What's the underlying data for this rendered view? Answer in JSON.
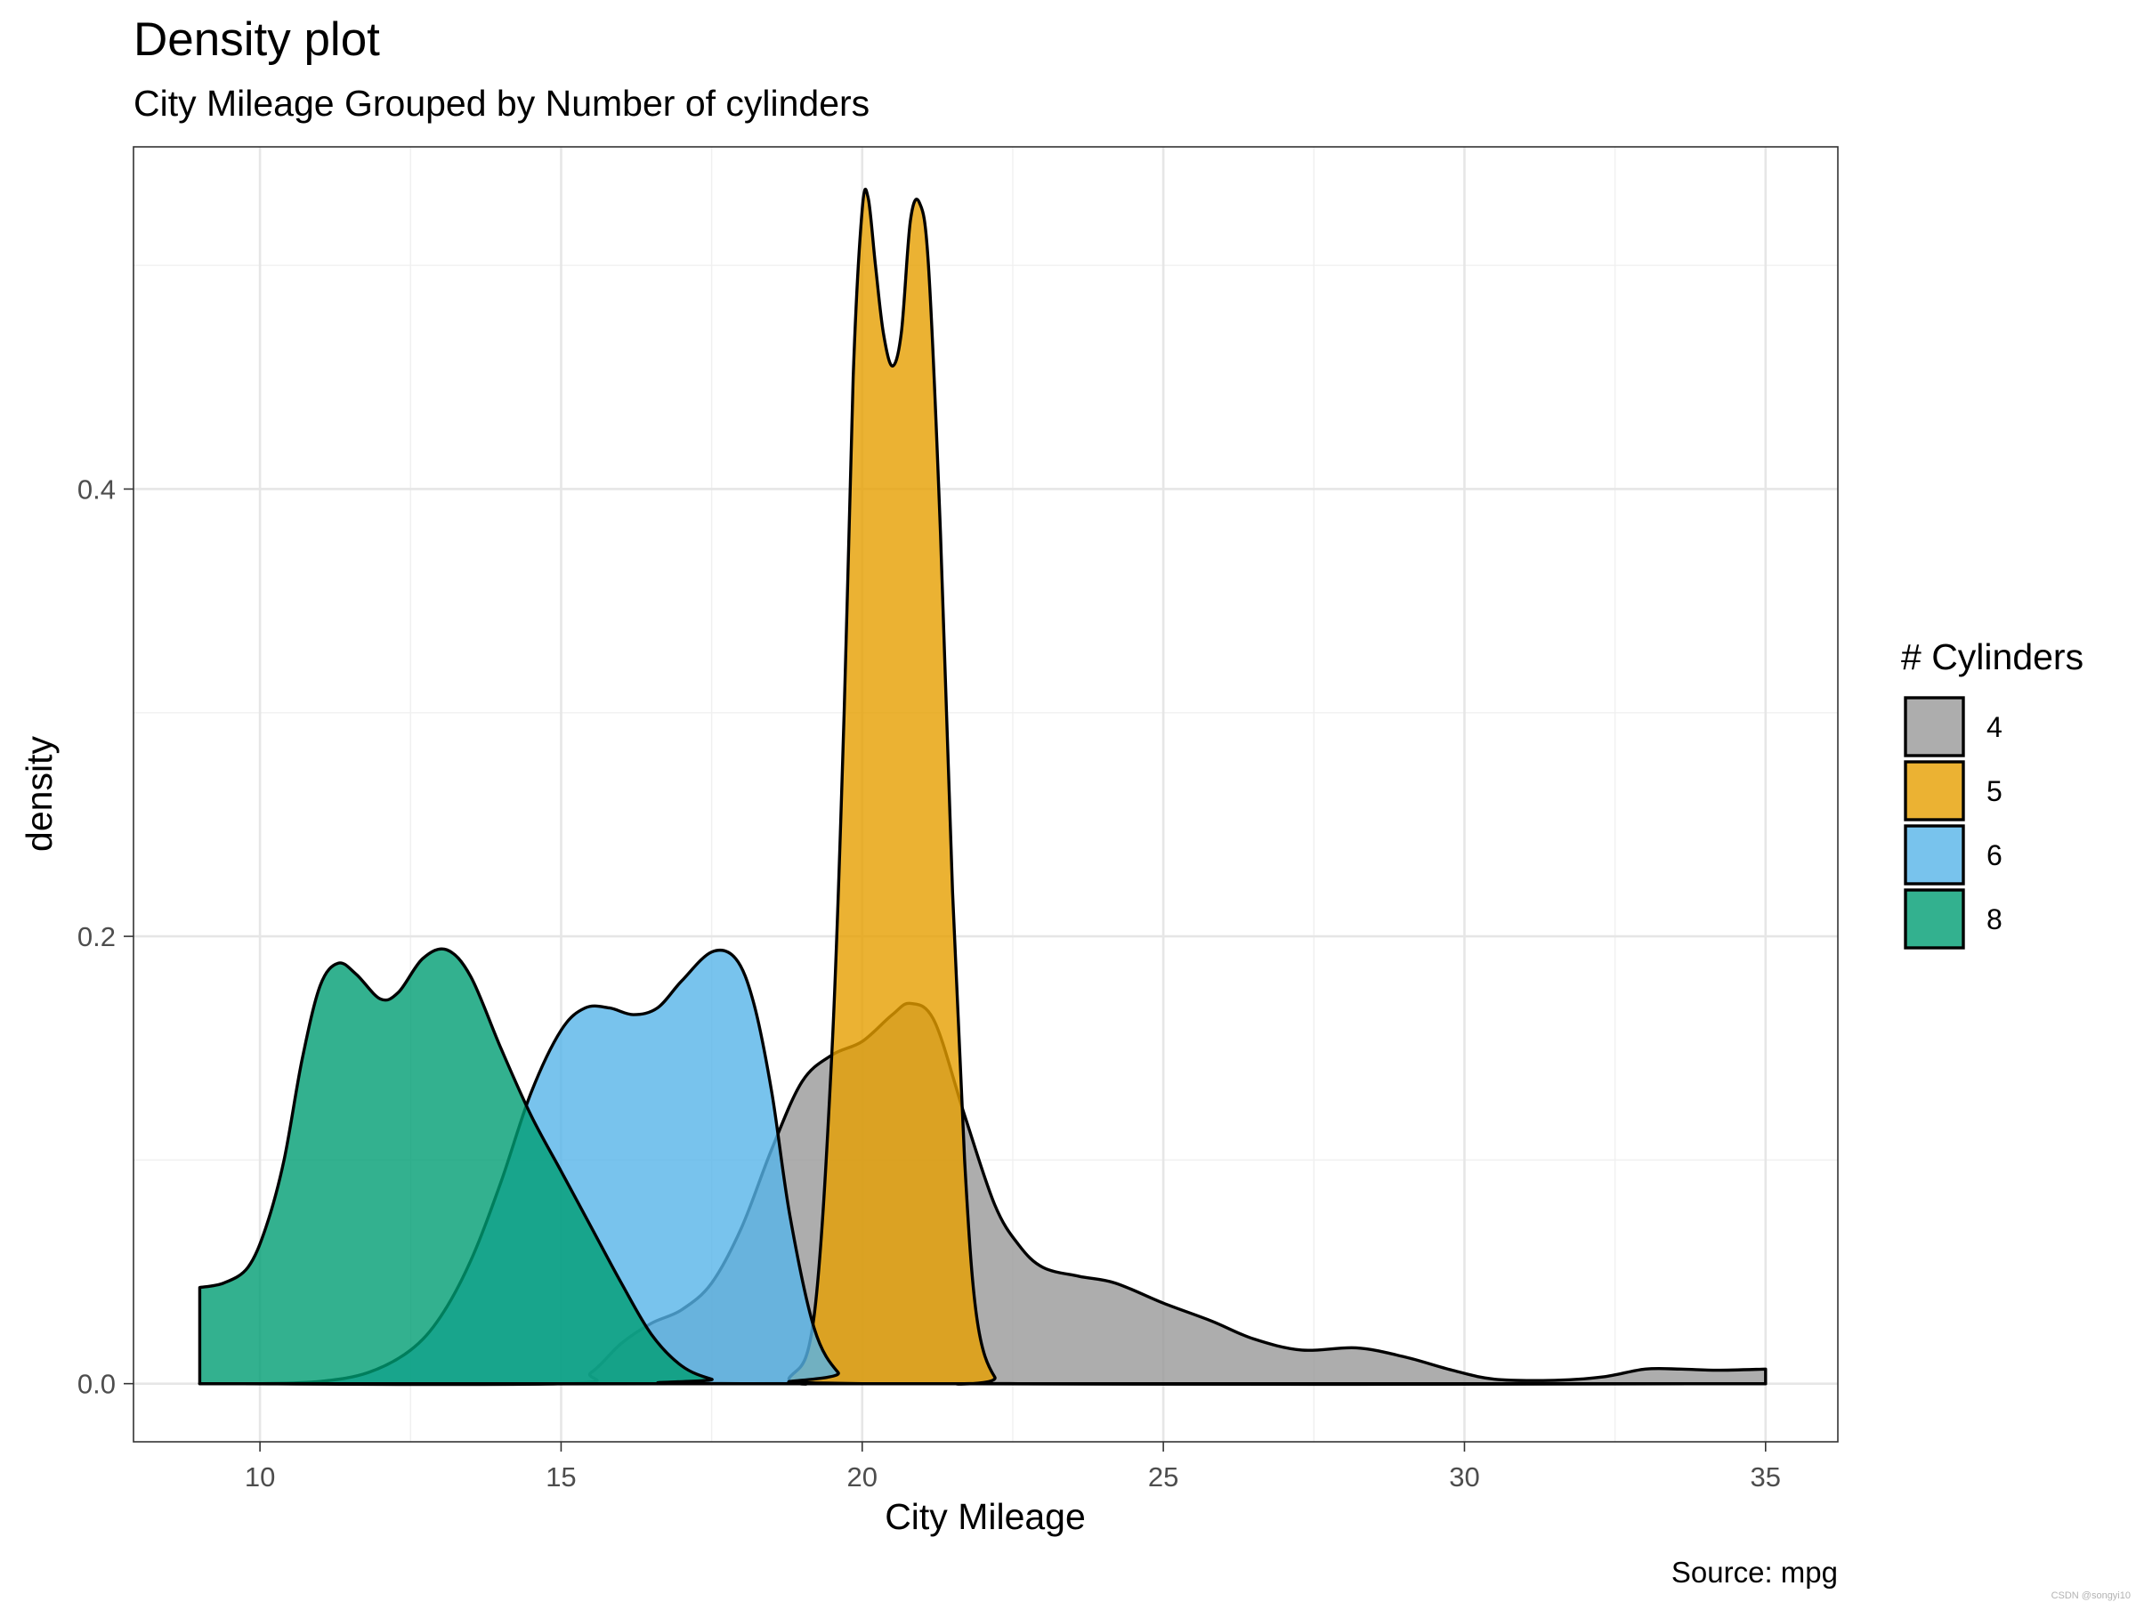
{
  "chart_data": {
    "type": "area",
    "subtype": "density",
    "title": "Density plot",
    "subtitle": "City Mileage Grouped by Number of cylinders",
    "xlabel": "City Mileage",
    "ylabel": "density",
    "caption": "Source: mpg",
    "xlim": [
      7.9,
      36.2
    ],
    "ylim": [
      -0.026,
      0.553
    ],
    "x_ticks": [
      10,
      15,
      20,
      25,
      30,
      35
    ],
    "x_tick_labels": [
      "10",
      "15",
      "20",
      "25",
      "30",
      "35"
    ],
    "y_ticks": [
      0.0,
      0.2,
      0.4
    ],
    "y_tick_labels": [
      "0.0",
      "0.2",
      "0.4"
    ],
    "grid": true,
    "legend": {
      "title": "# Cylinders",
      "position": "right"
    },
    "series": [
      {
        "name": "4",
        "color": "#999999",
        "alpha": 0.8,
        "points": [
          [
            9,
            0
          ],
          [
            15,
            0
          ],
          [
            15.5,
            0.005
          ],
          [
            16,
            0.018
          ],
          [
            16.5,
            0.027
          ],
          [
            17,
            0.033
          ],
          [
            17.5,
            0.045
          ],
          [
            18,
            0.07
          ],
          [
            18.5,
            0.105
          ],
          [
            19,
            0.135
          ],
          [
            19.5,
            0.147
          ],
          [
            20,
            0.153
          ],
          [
            20.5,
            0.165
          ],
          [
            20.8,
            0.17
          ],
          [
            21.2,
            0.162
          ],
          [
            21.7,
            0.12
          ],
          [
            22.2,
            0.08
          ],
          [
            22.6,
            0.062
          ],
          [
            23,
            0.052
          ],
          [
            23.6,
            0.048
          ],
          [
            24.2,
            0.045
          ],
          [
            25,
            0.036
          ],
          [
            25.8,
            0.028
          ],
          [
            26.5,
            0.02
          ],
          [
            27.3,
            0.015
          ],
          [
            28.2,
            0.016
          ],
          [
            29,
            0.012
          ],
          [
            29.8,
            0.006
          ],
          [
            30.5,
            0.002
          ],
          [
            31.5,
            0.0015
          ],
          [
            32.3,
            0.003
          ],
          [
            33,
            0.0065
          ],
          [
            33.6,
            0.0065
          ],
          [
            34.2,
            0.006
          ],
          [
            35,
            0.0065
          ]
        ]
      },
      {
        "name": "5",
        "color": "#E69F00",
        "alpha": 0.8,
        "points": [
          [
            9,
            0
          ],
          [
            18.2,
            0
          ],
          [
            18.8,
            0.003
          ],
          [
            19.2,
            0.03
          ],
          [
            19.5,
            0.15
          ],
          [
            19.7,
            0.3
          ],
          [
            19.85,
            0.45
          ],
          [
            20.0,
            0.525
          ],
          [
            20.1,
            0.53
          ],
          [
            20.22,
            0.5
          ],
          [
            20.35,
            0.47
          ],
          [
            20.5,
            0.455
          ],
          [
            20.65,
            0.47
          ],
          [
            20.8,
            0.52
          ],
          [
            20.95,
            0.528
          ],
          [
            21.1,
            0.5
          ],
          [
            21.3,
            0.38
          ],
          [
            21.5,
            0.22
          ],
          [
            21.7,
            0.1
          ],
          [
            21.9,
            0.03
          ],
          [
            22.2,
            0.003
          ],
          [
            22.6,
            0
          ],
          [
            35,
            0
          ]
        ]
      },
      {
        "name": "6",
        "color": "#56B4E9",
        "alpha": 0.8,
        "points": [
          [
            9,
            0
          ],
          [
            10,
            0
          ],
          [
            11,
            0.001
          ],
          [
            11.8,
            0.005
          ],
          [
            12.5,
            0.015
          ],
          [
            13,
            0.03
          ],
          [
            13.5,
            0.055
          ],
          [
            14,
            0.09
          ],
          [
            14.5,
            0.13
          ],
          [
            15,
            0.158
          ],
          [
            15.4,
            0.168
          ],
          [
            15.8,
            0.168
          ],
          [
            16.2,
            0.165
          ],
          [
            16.6,
            0.168
          ],
          [
            17,
            0.18
          ],
          [
            17.5,
            0.193
          ],
          [
            17.9,
            0.19
          ],
          [
            18.2,
            0.17
          ],
          [
            18.5,
            0.13
          ],
          [
            18.8,
            0.075
          ],
          [
            19.2,
            0.025
          ],
          [
            19.6,
            0.005
          ],
          [
            20,
            0
          ],
          [
            35,
            0
          ]
        ]
      },
      {
        "name": "8",
        "color": "#009E73",
        "alpha": 0.8,
        "points": [
          [
            9,
            0.043
          ],
          [
            9.4,
            0.045
          ],
          [
            9.8,
            0.052
          ],
          [
            10.1,
            0.07
          ],
          [
            10.4,
            0.1
          ],
          [
            10.7,
            0.145
          ],
          [
            11,
            0.178
          ],
          [
            11.3,
            0.188
          ],
          [
            11.6,
            0.183
          ],
          [
            12,
            0.172
          ],
          [
            12.3,
            0.175
          ],
          [
            12.7,
            0.19
          ],
          [
            13.1,
            0.194
          ],
          [
            13.5,
            0.182
          ],
          [
            14,
            0.15
          ],
          [
            14.5,
            0.12
          ],
          [
            15,
            0.095
          ],
          [
            15.5,
            0.07
          ],
          [
            16,
            0.045
          ],
          [
            16.5,
            0.022
          ],
          [
            17,
            0.008
          ],
          [
            17.5,
            0.002
          ],
          [
            18,
            0
          ],
          [
            35,
            0
          ]
        ]
      }
    ]
  },
  "watermark": "CSDN @songyi10"
}
